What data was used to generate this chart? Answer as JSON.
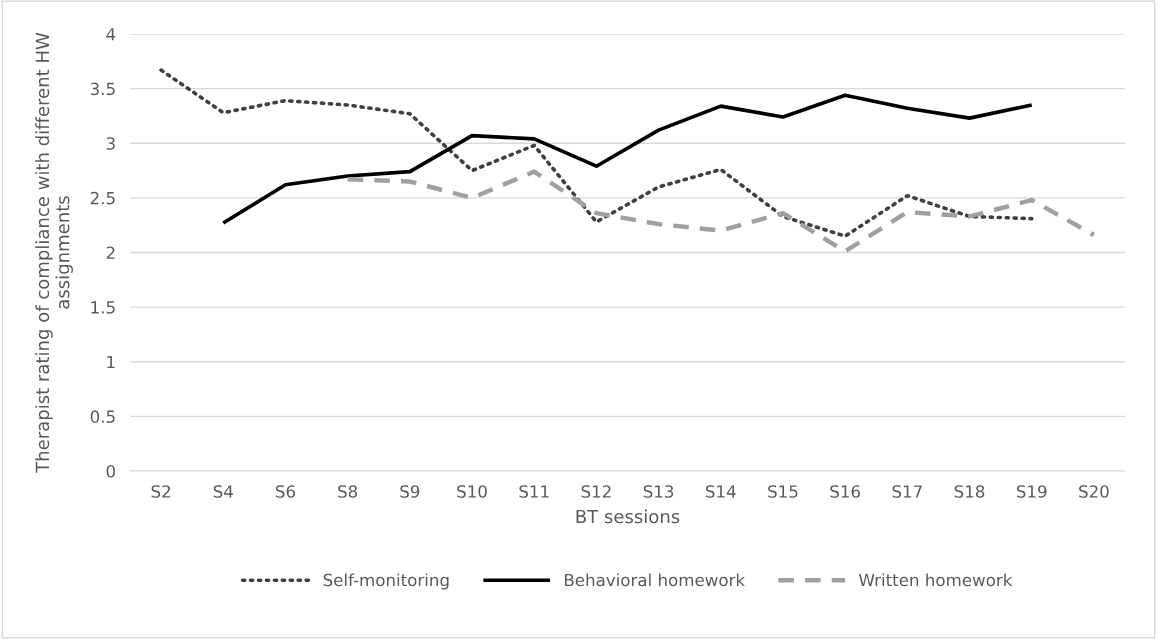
{
  "chart_data": {
    "type": "line",
    "xlabel": "BT sessions",
    "ylabel": "Therapist rating of compliance with different HW assignments",
    "categories": [
      "S2",
      "S4",
      "S6",
      "S8",
      "S9",
      "S10",
      "S11",
      "S12",
      "S13",
      "S14",
      "S15",
      "S16",
      "S17",
      "S18",
      "S19",
      "S20"
    ],
    "series": [
      {
        "name": "Self-monitoring",
        "color": "#404040",
        "line_style": "dotted",
        "values": [
          3.67,
          3.28,
          3.39,
          3.35,
          3.27,
          2.75,
          2.98,
          2.28,
          2.6,
          2.76,
          2.33,
          2.15,
          2.52,
          2.33,
          2.31,
          null
        ]
      },
      {
        "name": "Behavioral homework",
        "color": "#000000",
        "line_style": "solid",
        "values": [
          null,
          2.27,
          2.62,
          2.7,
          2.74,
          3.07,
          3.04,
          2.79,
          3.12,
          3.34,
          3.24,
          3.44,
          3.32,
          3.23,
          3.35,
          null
        ]
      },
      {
        "name": "Written homework",
        "color": "#a0a0a0",
        "line_style": "dashed",
        "values": [
          null,
          null,
          null,
          2.67,
          2.65,
          2.5,
          2.74,
          2.36,
          2.26,
          2.2,
          2.36,
          2.01,
          2.37,
          2.33,
          2.48,
          2.16
        ]
      }
    ],
    "ylim": [
      0,
      4
    ],
    "yticks": [
      0,
      0.5,
      1,
      1.5,
      2,
      2.5,
      3,
      3.5,
      4
    ],
    "grid": "y",
    "legend": "bottom",
    "marker": "none"
  }
}
